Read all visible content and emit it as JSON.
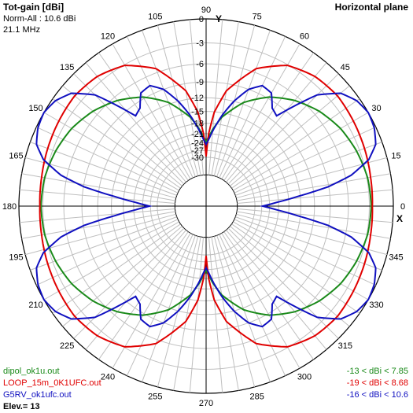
{
  "header": {
    "title": "Tot-gain [dBi]",
    "norm": "Norm-All : 10.6 dBi",
    "freq": "21.1 MHz",
    "plane": "Horizontal plane"
  },
  "footer": {
    "elev": "Elev.= 13"
  },
  "colors": {
    "grid_light": "#bfbfbf",
    "grid_dark": "#000000",
    "green": "#1a8a1a",
    "red": "#e00000",
    "blue": "#1010c0"
  },
  "chart_data": {
    "type": "polar",
    "title": "Tot-gain [dBi]",
    "axis_labels": {
      "y": "Y",
      "x": "X"
    },
    "radial_ticks": [
      0,
      -3,
      -6,
      -9,
      -12,
      -15,
      -18,
      -21,
      -24,
      -27,
      -30
    ],
    "angle_labels": [
      {
        "deg": 0,
        "text": "0"
      },
      {
        "deg": 15,
        "text": "15"
      },
      {
        "deg": 30,
        "text": "30"
      },
      {
        "deg": 45,
        "text": "45"
      },
      {
        "deg": 60,
        "text": "60"
      },
      {
        "deg": 75,
        "text": "75"
      },
      {
        "deg": 90,
        "text": "90"
      },
      {
        "deg": 105,
        "text": "105"
      },
      {
        "deg": 120,
        "text": "120"
      },
      {
        "deg": 135,
        "text": "135"
      },
      {
        "deg": 150,
        "text": "150"
      },
      {
        "deg": 165,
        "text": "165"
      },
      {
        "deg": 180,
        "text": "180"
      },
      {
        "deg": 195,
        "text": "195"
      },
      {
        "deg": 210,
        "text": "210"
      },
      {
        "deg": 225,
        "text": "225"
      },
      {
        "deg": 240,
        "text": "240"
      },
      {
        "deg": 255,
        "text": "255"
      },
      {
        "deg": 270,
        "text": "270"
      },
      {
        "deg": 285,
        "text": "285"
      },
      {
        "deg": 300,
        "text": "300"
      },
      {
        "deg": 315,
        "text": "315"
      },
      {
        "deg": 330,
        "text": "330"
      },
      {
        "deg": 345,
        "text": "345"
      }
    ],
    "series": [
      {
        "name": "dipol_ok1u.out",
        "range": "-13 < dBi < 7.85",
        "color": "#1a8a1a",
        "angles": [
          0,
          10,
          20,
          30,
          40,
          50,
          60,
          70,
          80,
          85,
          88,
          90
        ],
        "dbi": [
          7.85,
          7.7,
          7.2,
          6.5,
          5.4,
          3.9,
          1.9,
          -1.0,
          -5.5,
          -9.0,
          -11.5,
          -13
        ]
      },
      {
        "name": "LOOP_15m_0K1UFC.out",
        "range": "-19 < dBi < 8.68",
        "color": "#e00000",
        "angles": [
          0,
          10,
          20,
          30,
          40,
          50,
          60,
          70,
          80,
          85,
          88,
          90
        ],
        "dbi": [
          8.0,
          8.1,
          8.3,
          8.5,
          8.68,
          8.4,
          7.5,
          5.2,
          0.3,
          -4.5,
          -10.5,
          -19
        ]
      },
      {
        "name": "G5RV_ok1ufc.out",
        "range": "-16 < dBi < 10.6",
        "color": "#1010c0",
        "angles": [
          0,
          3,
          6,
          9,
          12,
          16,
          20,
          25,
          30,
          35,
          40,
          45,
          48,
          52,
          56,
          60,
          65,
          70,
          75,
          80,
          85,
          88,
          90
        ],
        "dbi": [
          -16,
          -11,
          -5,
          1.5,
          5.5,
          8.4,
          9.8,
          10.4,
          10.6,
          10.2,
          9.2,
          6.8,
          3.8,
          -0.2,
          0.5,
          2.7,
          3.1,
          1.6,
          -1.3,
          -5.0,
          -9.5,
          -12.5,
          -14
        ]
      }
    ]
  }
}
